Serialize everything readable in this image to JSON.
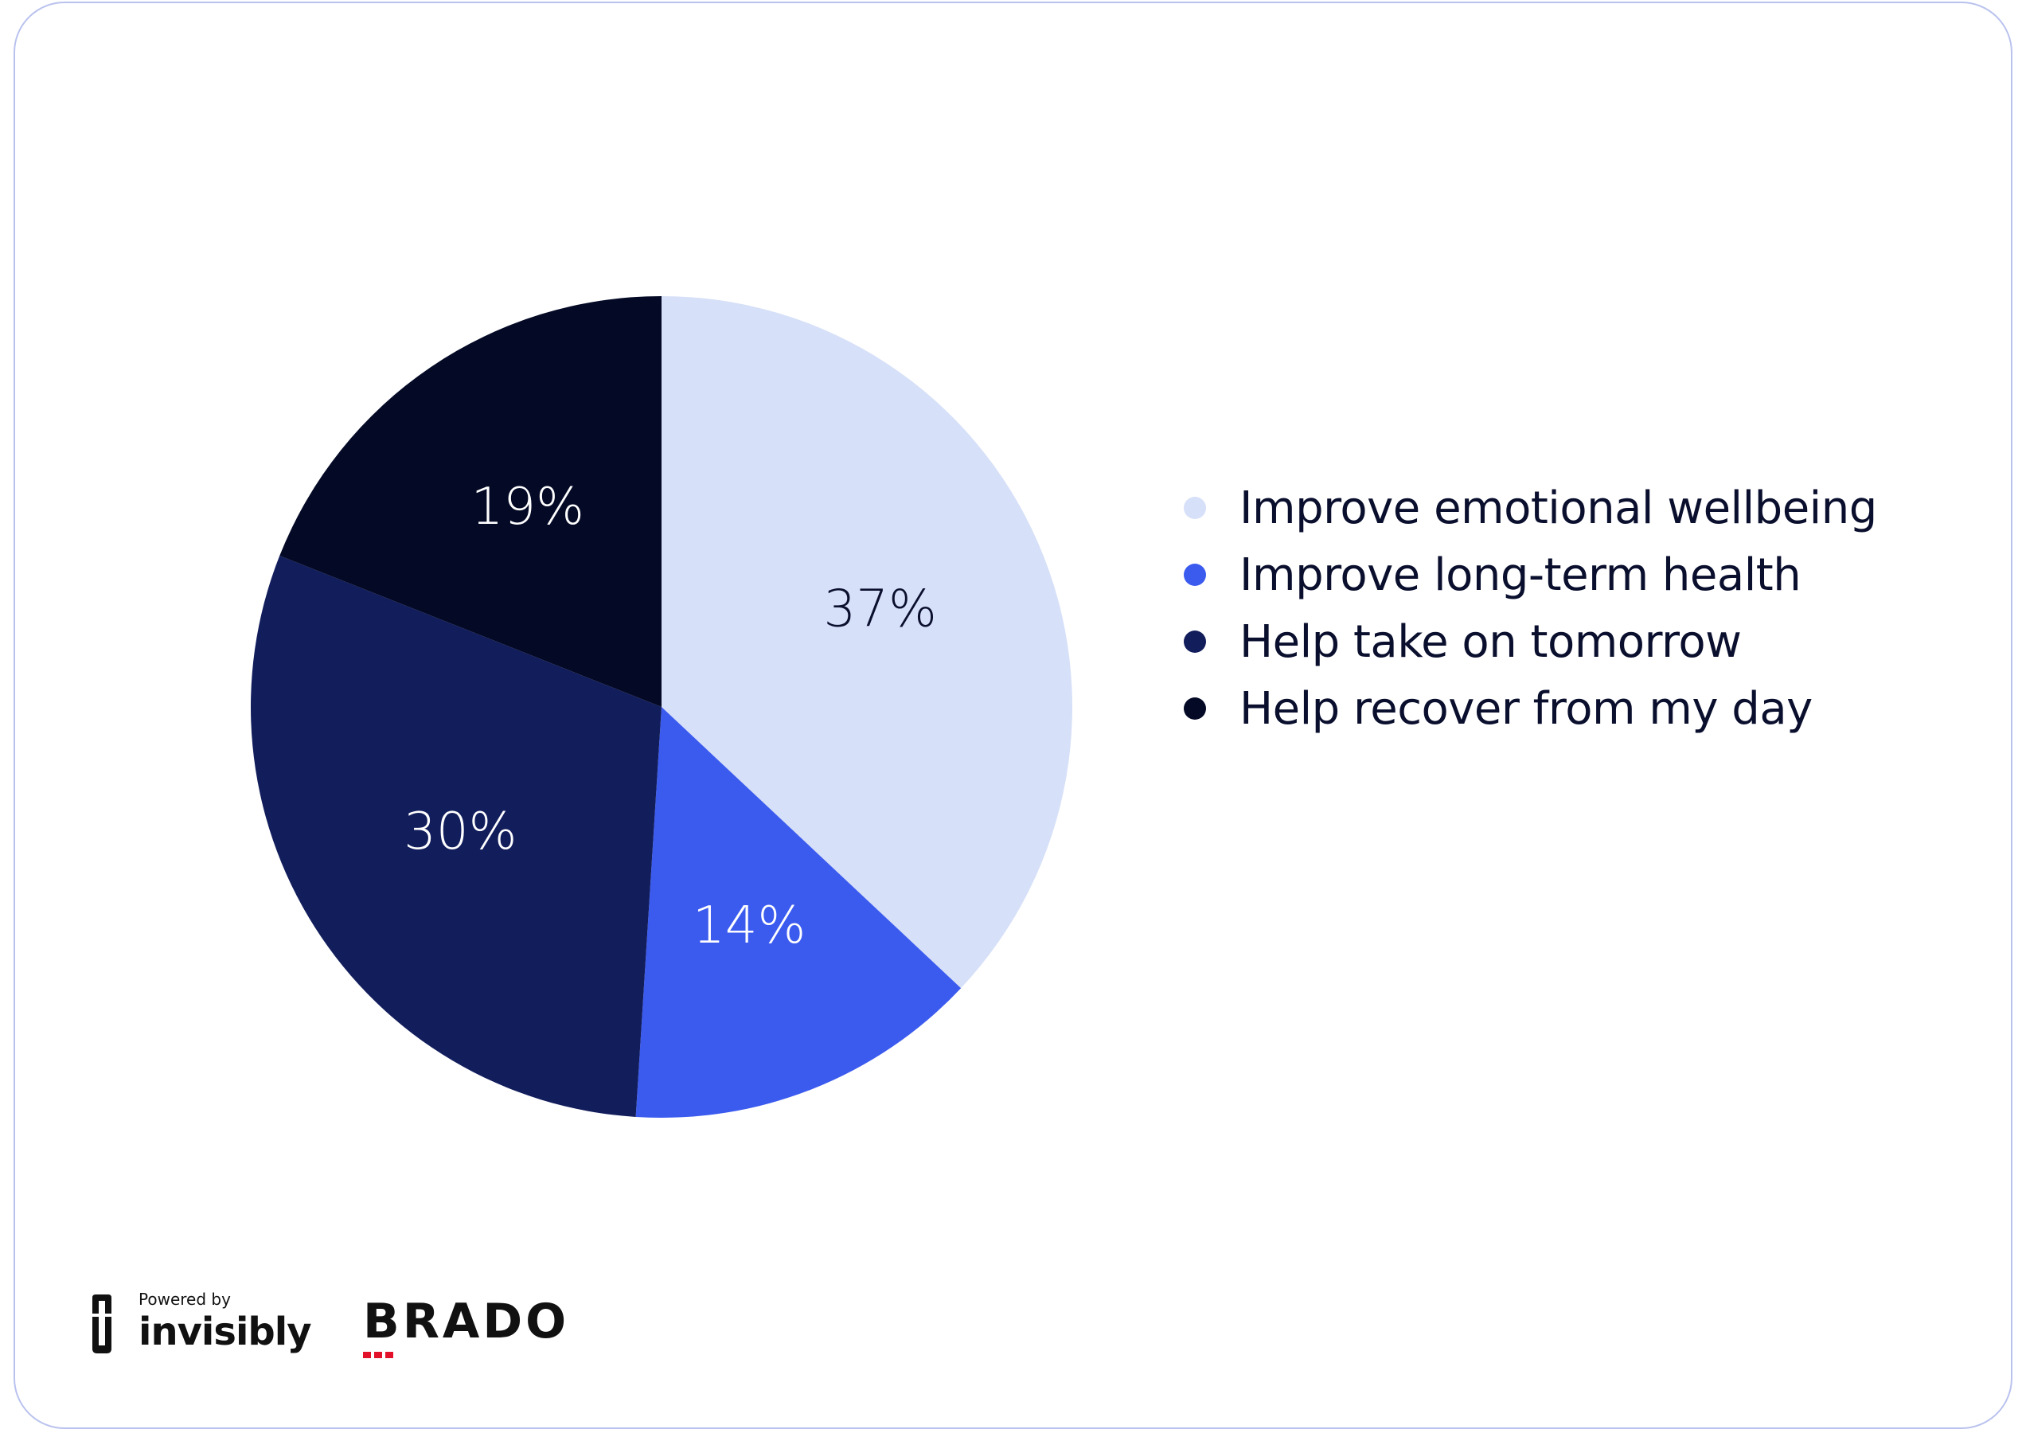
{
  "chart_data": {
    "type": "pie",
    "categories": [
      "Improve emotional wellbeing",
      "Improve long-term health",
      "Help take on tomorrow",
      "Help recover from my day"
    ],
    "values": [
      37,
      14,
      30,
      19
    ],
    "labels": [
      "37%",
      "14%",
      "30%",
      "19%"
    ],
    "colors": [
      "#d6e0f8",
      "#3b5bef",
      "#121d5c",
      "#040a26"
    ],
    "label_colors": [
      "#0a0f2e",
      "#ffffff",
      "#ffffff",
      "#ffffff"
    ],
    "legend_position": "right"
  },
  "footer": {
    "powered_by": "Powered by",
    "invisibly": "invisibly",
    "brado": "BRADO"
  }
}
